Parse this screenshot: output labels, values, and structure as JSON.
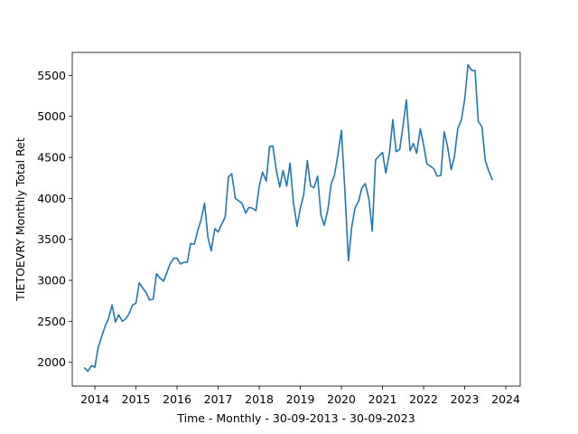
{
  "chart_data": {
    "type": "line",
    "title": "",
    "xlabel": "Time - Monthly - 30-09-2013 - 30-09-2023",
    "ylabel": "TIETOEVRY Monthly Total Ret",
    "xlim": [
      2013.45,
      2024.35
    ],
    "ylim": [
      1710,
      5780
    ],
    "xticks": [
      2014,
      2015,
      2016,
      2017,
      2018,
      2019,
      2020,
      2021,
      2022,
      2023,
      2024
    ],
    "xtick_labels": [
      "2014",
      "2015",
      "2016",
      "2017",
      "2018",
      "2019",
      "2020",
      "2021",
      "2022",
      "2023",
      "2024"
    ],
    "yticks": [
      2000,
      2500,
      3000,
      3500,
      4000,
      4500,
      5000,
      5500
    ],
    "ytick_labels": [
      "2000",
      "2500",
      "3000",
      "3500",
      "4000",
      "4500",
      "5000",
      "5500"
    ],
    "grid": false,
    "line_color": "#1f77b4",
    "series": [
      {
        "x": [
          2013.75,
          2013.83,
          2013.92,
          2014.0,
          2014.08,
          2014.17,
          2014.25,
          2014.33,
          2014.42,
          2014.5,
          2014.58,
          2014.67,
          2014.75,
          2014.83,
          2014.92,
          2015.0,
          2015.08,
          2015.17,
          2015.25,
          2015.33,
          2015.42,
          2015.5,
          2015.58,
          2015.67,
          2015.75,
          2015.83,
          2015.92,
          2016.0,
          2016.08,
          2016.17,
          2016.25,
          2016.33,
          2016.42,
          2016.5,
          2016.58,
          2016.67,
          2016.75,
          2016.83,
          2016.92,
          2017.0,
          2017.08,
          2017.17,
          2017.25,
          2017.33,
          2017.42,
          2017.5,
          2017.58,
          2017.67,
          2017.75,
          2017.83,
          2017.92,
          2018.0,
          2018.08,
          2018.17,
          2018.25,
          2018.33,
          2018.42,
          2018.5,
          2018.58,
          2018.67,
          2018.75,
          2018.83,
          2018.92,
          2019.0,
          2019.08,
          2019.17,
          2019.25,
          2019.33,
          2019.42,
          2019.5,
          2019.58,
          2019.67,
          2019.75,
          2019.83,
          2019.92,
          2020.0,
          2020.08,
          2020.17,
          2020.25,
          2020.33,
          2020.42,
          2020.5,
          2020.58,
          2020.67,
          2020.75,
          2020.83,
          2020.92,
          2021.0,
          2021.08,
          2021.17,
          2021.25,
          2021.33,
          2021.42,
          2021.5,
          2021.58,
          2021.67,
          2021.75,
          2021.83,
          2021.92,
          2022.0,
          2022.08,
          2022.17,
          2022.25,
          2022.33,
          2022.42,
          2022.5,
          2022.58,
          2022.67,
          2022.75,
          2022.83,
          2022.92,
          2023.0,
          2023.08,
          2023.17,
          2023.25,
          2023.33,
          2023.42,
          2023.5,
          2023.58,
          2023.67
        ],
        "y": [
          1930,
          1890,
          1960,
          1940,
          2180,
          2320,
          2440,
          2530,
          2700,
          2490,
          2580,
          2500,
          2530,
          2590,
          2700,
          2720,
          2970,
          2900,
          2850,
          2760,
          2770,
          3080,
          3030,
          2990,
          3090,
          3200,
          3270,
          3270,
          3200,
          3220,
          3220,
          3450,
          3440,
          3600,
          3730,
          3940,
          3530,
          3360,
          3630,
          3590,
          3680,
          3770,
          4260,
          4300,
          4000,
          3970,
          3940,
          3820,
          3890,
          3880,
          3850,
          4150,
          4320,
          4210,
          4630,
          4640,
          4330,
          4140,
          4340,
          4150,
          4430,
          3960,
          3660,
          3880,
          4040,
          4460,
          4150,
          4130,
          4270,
          3800,
          3670,
          3860,
          4180,
          4280,
          4550,
          4830,
          4130,
          3240,
          3650,
          3880,
          3970,
          4130,
          4180,
          3990,
          3600,
          4470,
          4520,
          4560,
          4310,
          4560,
          4960,
          4570,
          4600,
          4890,
          5200,
          4580,
          4670,
          4550,
          4850,
          4650,
          4420,
          4390,
          4360,
          4270,
          4280,
          4810,
          4640,
          4350,
          4510,
          4850,
          4960,
          5210,
          5630,
          5560,
          5560,
          4940,
          4870,
          4460,
          4340,
          4230
        ]
      }
    ]
  }
}
